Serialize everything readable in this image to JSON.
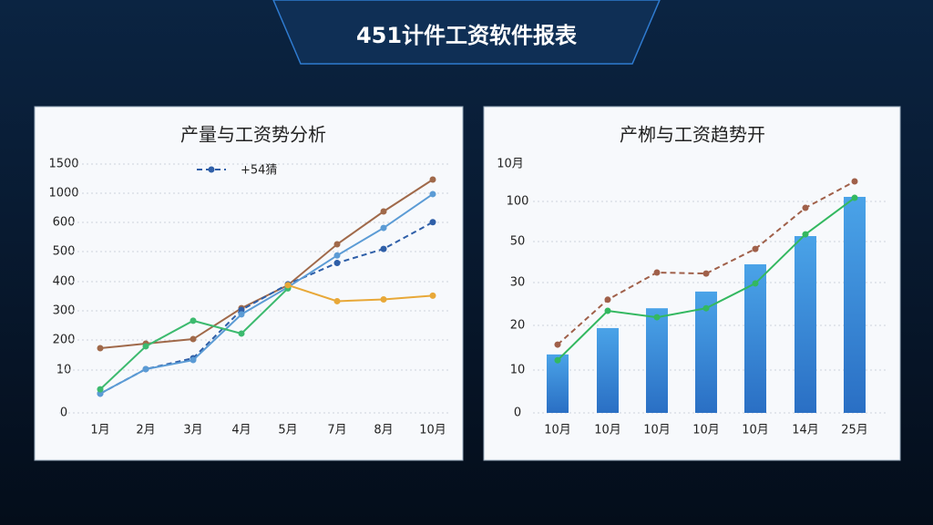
{
  "page_title": "451计件工资软件报表",
  "chart_data": [
    {
      "type": "line",
      "title": "产量与工资势分析",
      "categories": [
        "1月",
        "2月",
        "3月",
        "4月",
        "5月",
        "7月",
        "8月",
        "10月"
      ],
      "ylim": [
        0,
        1500
      ],
      "yticks": [
        0,
        10,
        200,
        300,
        400,
        500,
        600,
        1000,
        1500
      ],
      "grid": true,
      "legend": "top-left",
      "series": [
        {
          "color": "#a0694a",
          "values": [
            148,
            177,
            203,
            309,
            388,
            525,
            750,
            1234
          ]
        },
        {
          "name": "+54猜",
          "color": "#2f5fa8",
          "dashed": true,
          "values": [
            4.5,
            16,
            85,
            303,
            391,
            462,
            509,
            603
          ]
        },
        {
          "color": "#5b9bd5",
          "values": [
            4.5,
            16,
            73,
            288,
            381,
            487,
            581,
            988
          ]
        },
        {
          "color": "#3cba6f",
          "values": [
            5.5,
            160,
            266,
            222,
            377,
            null,
            null,
            null
          ]
        },
        {
          "color": "#e8a838",
          "values": [
            null,
            null,
            null,
            null,
            388,
            333,
            339,
            352
          ]
        }
      ]
    },
    {
      "type": "bar",
      "title": "产栁与工资趋势开",
      "y_top_label": "10月",
      "categories": [
        "10月",
        "10月",
        "10月",
        "10月",
        "10月",
        "14月",
        "25月"
      ],
      "yticks": [
        0,
        10,
        20,
        30,
        50,
        100
      ],
      "grid": true,
      "series": [
        {
          "type": "bar",
          "color": "#3f8fdc",
          "values": [
            13.5,
            19.4,
            24,
            27.9,
            38.9,
            56.8,
            105.7
          ]
        },
        {
          "type": "line",
          "color": "#a0604a",
          "dashed": true,
          "values": [
            15.7,
            26,
            34.9,
            34.4,
            46.4,
            92,
            125
          ]
        },
        {
          "type": "line",
          "color": "#33b860",
          "values": [
            12.2,
            23.4,
            21.9,
            24,
            29.8,
            59,
            104.5
          ]
        }
      ]
    }
  ]
}
